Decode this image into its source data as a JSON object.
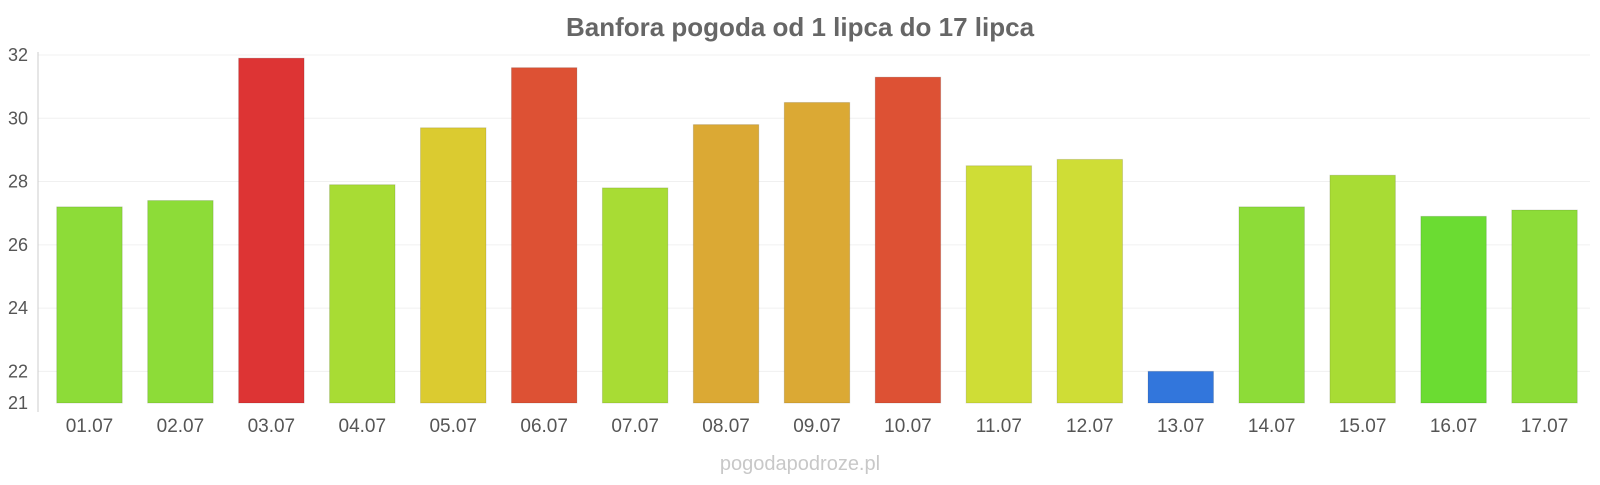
{
  "chart_data": {
    "type": "bar",
    "title": "Banfora pogoda od 1 lipca do 17 lipca",
    "xlabel": "",
    "ylabel": "",
    "categories": [
      "01.07",
      "02.07",
      "03.07",
      "04.07",
      "05.07",
      "06.07",
      "07.07",
      "08.07",
      "09.07",
      "10.07",
      "11.07",
      "12.07",
      "13.07",
      "14.07",
      "15.07",
      "16.07",
      "17.07"
    ],
    "values": [
      27.2,
      27.4,
      31.9,
      27.9,
      29.7,
      31.6,
      27.8,
      29.8,
      30.5,
      31.3,
      28.5,
      28.7,
      22.0,
      27.2,
      28.2,
      26.9,
      27.1
    ],
    "colors": [
      "#8ddc38",
      "#8ddc38",
      "#dd3434",
      "#a8dc34",
      "#dbcb30",
      "#dd5134",
      "#a8dc34",
      "#dba934",
      "#dba934",
      "#dd5134",
      "#cfdd36",
      "#cfdd36",
      "#3276dc",
      "#8ddc38",
      "#a8dc34",
      "#6bdc32",
      "#8ddc38"
    ],
    "ylim": [
      21,
      32
    ],
    "yticks": [
      21,
      22,
      24,
      26,
      28,
      30,
      32
    ],
    "grid": true,
    "legend": "none"
  },
  "watermark": "pogodapodroze.pl"
}
